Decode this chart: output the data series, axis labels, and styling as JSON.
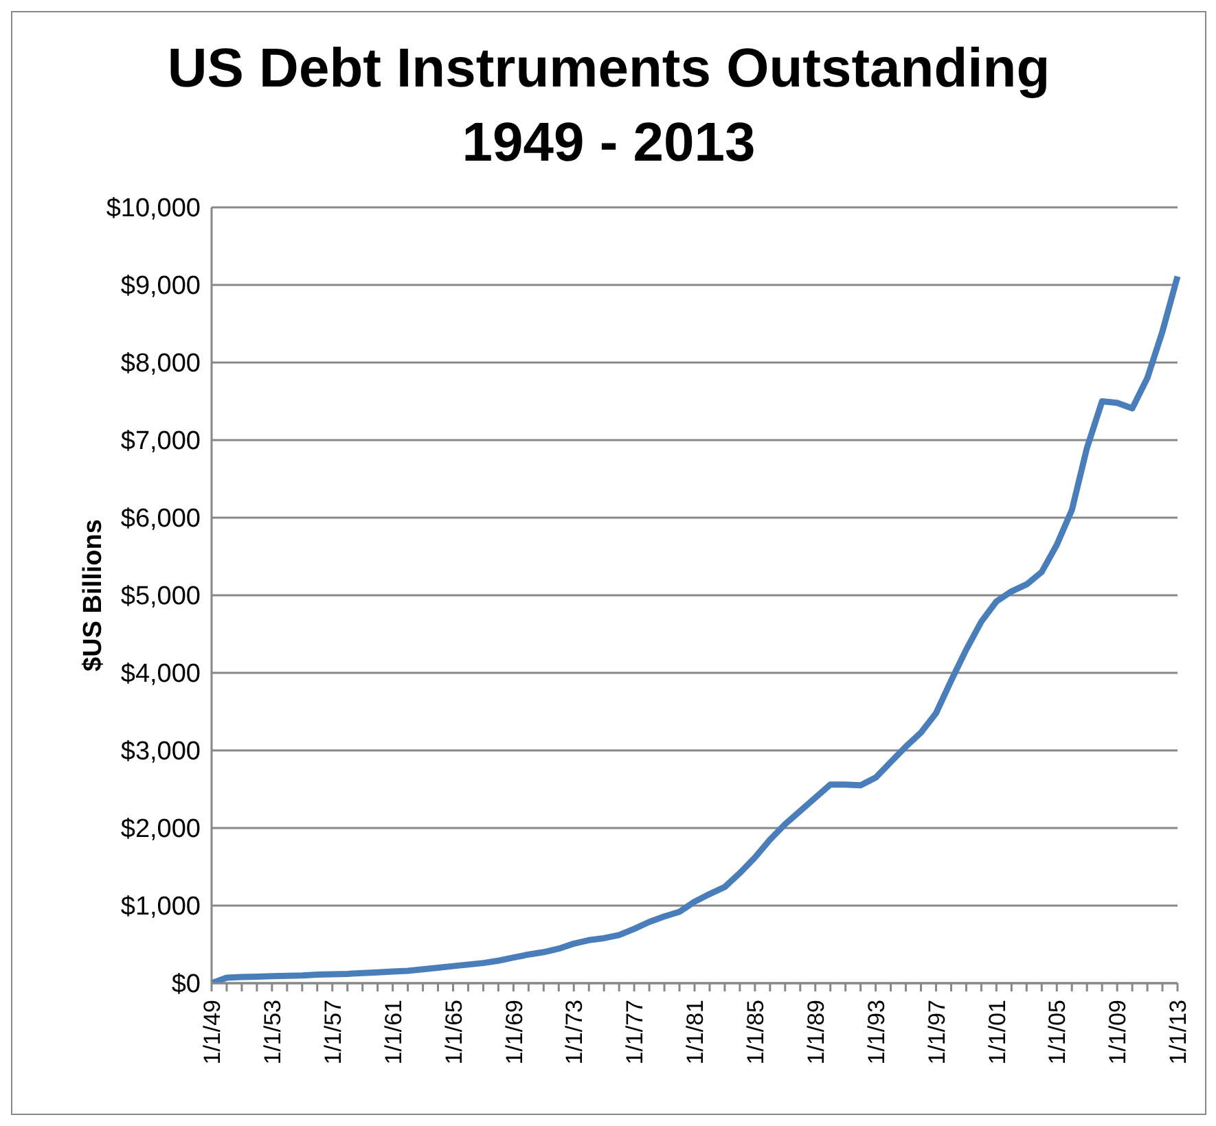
{
  "chart_data": {
    "type": "line",
    "title": "US Debt Instruments Outstanding 1949 - 2013",
    "ylabel": "$US Billions",
    "categories": [
      "1/1/49",
      null,
      null,
      null,
      "1/1/53",
      null,
      null,
      null,
      "1/1/57",
      null,
      null,
      null,
      "1/1/61",
      null,
      null,
      null,
      "1/1/65",
      null,
      null,
      null,
      "1/1/69",
      null,
      null,
      null,
      "1/1/73",
      null,
      null,
      null,
      "1/1/77",
      null,
      null,
      null,
      "1/1/81",
      null,
      null,
      null,
      "1/1/85",
      null,
      null,
      null,
      "1/1/89",
      null,
      null,
      null,
      "1/1/93",
      null,
      null,
      null,
      "1/1/97",
      null,
      null,
      null,
      "1/1/01",
      null,
      null,
      null,
      "1/1/05",
      null,
      null,
      null,
      "1/1/09",
      null,
      null,
      null,
      "1/1/13"
    ],
    "series": [
      {
        "color": "#4a7ebb",
        "values": [
          0,
          70,
          80,
          85,
          90,
          95,
          100,
          110,
          115,
          120,
          130,
          140,
          150,
          160,
          180,
          200,
          220,
          240,
          260,
          290,
          330,
          370,
          400,
          445,
          510,
          555,
          580,
          620,
          700,
          790,
          860,
          920,
          1050,
          1150,
          1240,
          1420,
          1620,
          1850,
          2050,
          2220,
          2390,
          2560,
          2560,
          2550,
          2650,
          2850,
          3050,
          3230,
          3480,
          3900,
          4300,
          4660,
          4920,
          5050,
          5140,
          5300,
          5650,
          6100,
          6900,
          7500,
          7480,
          7410,
          7800,
          8400,
          9110
        ]
      }
    ],
    "ylim": [
      0,
      10000
    ],
    "yticks": [
      {
        "value": 0,
        "label": "$0"
      },
      {
        "value": 1000,
        "label": "$1,000"
      },
      {
        "value": 2000,
        "label": "$2,000"
      },
      {
        "value": 3000,
        "label": "$3,000"
      },
      {
        "value": 4000,
        "label": "$4,000"
      },
      {
        "value": 5000,
        "label": "$5,000"
      },
      {
        "value": 6000,
        "label": "$6,000"
      },
      {
        "value": 7000,
        "label": "$7,000"
      },
      {
        "value": 8000,
        "label": "$8,000"
      },
      {
        "value": 9000,
        "label": "$9,000"
      },
      {
        "value": 10000,
        "label": "$10,000"
      }
    ],
    "grid": "y",
    "legend": false,
    "marker": "none",
    "line_style": "solid"
  }
}
